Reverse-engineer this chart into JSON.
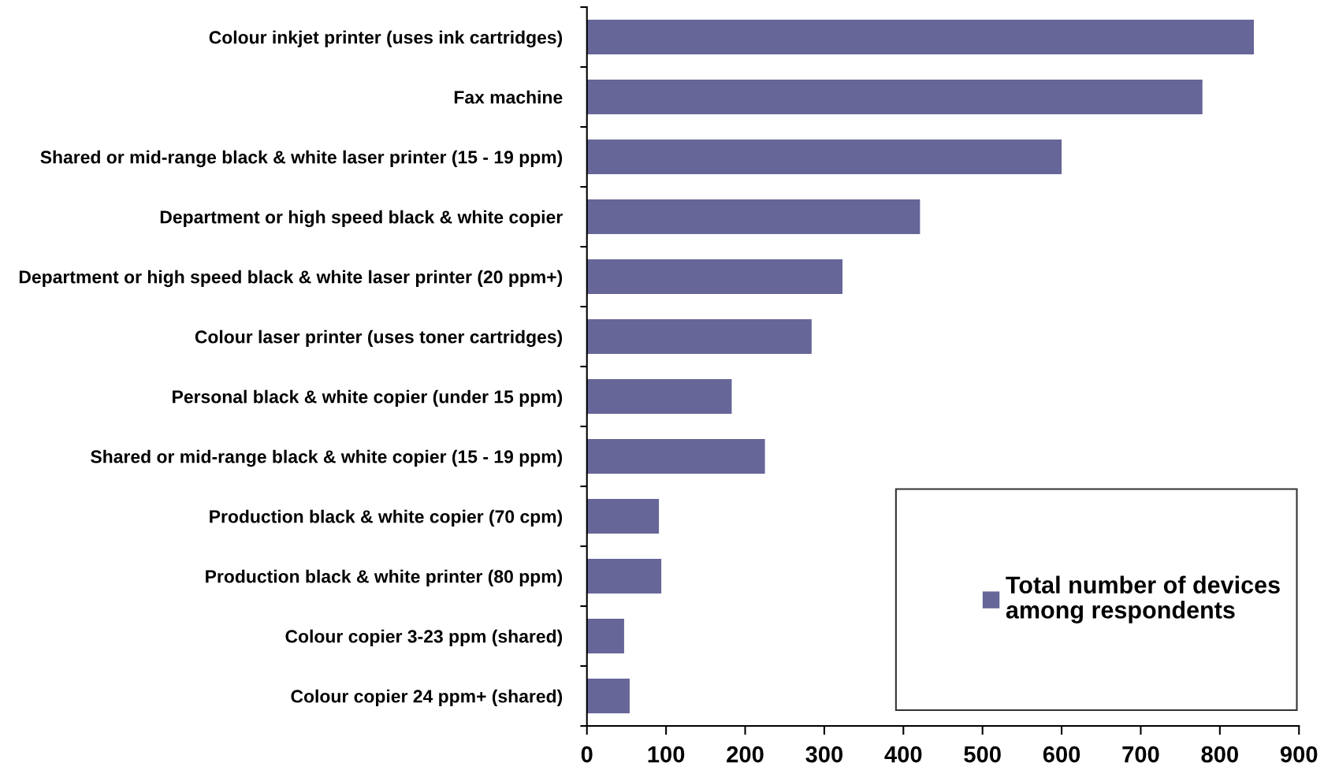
{
  "chart_data": {
    "type": "bar",
    "orientation": "horizontal",
    "categories": [
      "Colour inkjet printer (uses ink cartridges)",
      "Fax machine",
      "Shared or mid-range black & white laser printer (15 - 19 ppm)",
      "Department or high speed black & white copier",
      "Department or high speed black & white laser printer (20 ppm+)",
      "Colour laser printer (uses toner cartridges)",
      "Personal black & white copier (under 15 ppm)",
      "Shared or mid-range black & white copier (15 - 19 ppm)",
      "Production black & white copier (70 cpm)",
      "Production black & white printer (80 ppm)",
      "Colour copier 3-23 ppm (shared)",
      "Colour copier 24 ppm+ (shared)"
    ],
    "series": [
      {
        "name": "Total number of devices\namong respondents",
        "color": "#666699",
        "values": [
          843,
          778,
          600,
          421,
          323,
          284,
          183,
          225,
          91,
          94,
          47,
          54
        ]
      }
    ],
    "xlim": [
      0,
      900
    ],
    "xticks": [
      0,
      100,
      200,
      300,
      400,
      500,
      600,
      700,
      800,
      900
    ],
    "legend": "lower right"
  }
}
